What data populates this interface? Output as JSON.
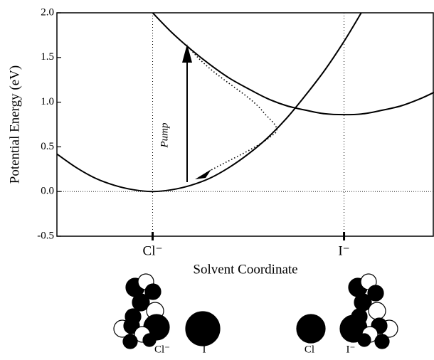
{
  "chart_data": {
    "type": "line",
    "xlabel": "Solvent Coordinate",
    "ylabel": "Potential Energy (eV)",
    "xlim": [
      -0.5,
      1.47
    ],
    "ylim": [
      -0.5,
      2.0
    ],
    "xticks": [
      {
        "value": 0,
        "label": "Cl⁻"
      },
      {
        "value": 1,
        "label": "I⁻"
      }
    ],
    "yticks": [
      {
        "value": -0.5,
        "label": "-0.5"
      },
      {
        "value": 0,
        "label": "0.0"
      },
      {
        "value": 0.5,
        "label": "0.5"
      },
      {
        "value": 1.0,
        "label": "1.0"
      },
      {
        "value": 1.5,
        "label": "1.5"
      },
      {
        "value": 2.0,
        "label": "2.0"
      }
    ],
    "series": [
      {
        "color": "#000000",
        "x": [
          -0.5,
          -0.4,
          -0.3,
          -0.2,
          -0.1,
          0,
          0.1,
          0.2,
          0.3,
          0.4,
          0.5,
          0.6,
          0.7,
          0.8,
          0.9,
          1.0,
          1.09
        ],
        "values": [
          0.42,
          0.27,
          0.15,
          0.07,
          0.02,
          0,
          0.02,
          0.07,
          0.15,
          0.27,
          0.42,
          0.6,
          0.82,
          1.08,
          1.36,
          1.68,
          2.0
        ]
      },
      {
        "color": "#000000",
        "x": [
          0,
          0.1,
          0.2,
          0.3,
          0.4,
          0.5,
          0.6,
          0.7,
          0.8,
          0.9,
          1.0,
          1.1,
          1.2,
          1.3,
          1.4,
          1.47
        ],
        "values": [
          2.0,
          1.78,
          1.59,
          1.42,
          1.27,
          1.15,
          1.04,
          0.96,
          0.91,
          0.87,
          0.86,
          0.87,
          0.91,
          0.96,
          1.04,
          1.11
        ]
      }
    ],
    "annotation": "Pump",
    "structure_labels": [
      "Cl⁻",
      "I",
      "Cl",
      "I⁻"
    ]
  }
}
